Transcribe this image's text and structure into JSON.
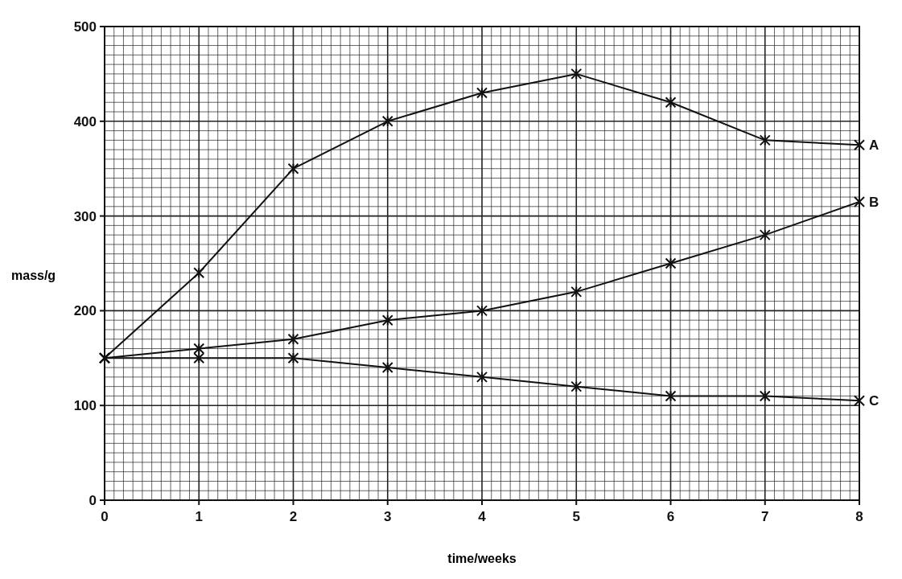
{
  "chart_data": {
    "type": "line",
    "xlabel": "time/weeks",
    "ylabel": "mass/g",
    "x": [
      0,
      1,
      2,
      3,
      4,
      5,
      6,
      7,
      8
    ],
    "series": [
      {
        "name": "A",
        "color": "#111111",
        "values": [
          150,
          240,
          350,
          400,
          430,
          450,
          420,
          380,
          375
        ]
      },
      {
        "name": "B",
        "color": "#111111",
        "values": [
          150,
          160,
          170,
          190,
          200,
          220,
          250,
          280,
          315
        ]
      },
      {
        "name": "C",
        "color": "#111111",
        "values": [
          150,
          150,
          150,
          140,
          130,
          120,
          110,
          110,
          105
        ]
      }
    ],
    "xlim": [
      0,
      8
    ],
    "xticks": [
      0,
      1,
      2,
      3,
      4,
      5,
      6,
      7,
      8
    ],
    "ylim": [
      0,
      500
    ],
    "yticks": [
      0,
      100,
      200,
      300,
      400,
      500
    ],
    "grid": true,
    "marker": "cross",
    "line_style": "solid"
  }
}
